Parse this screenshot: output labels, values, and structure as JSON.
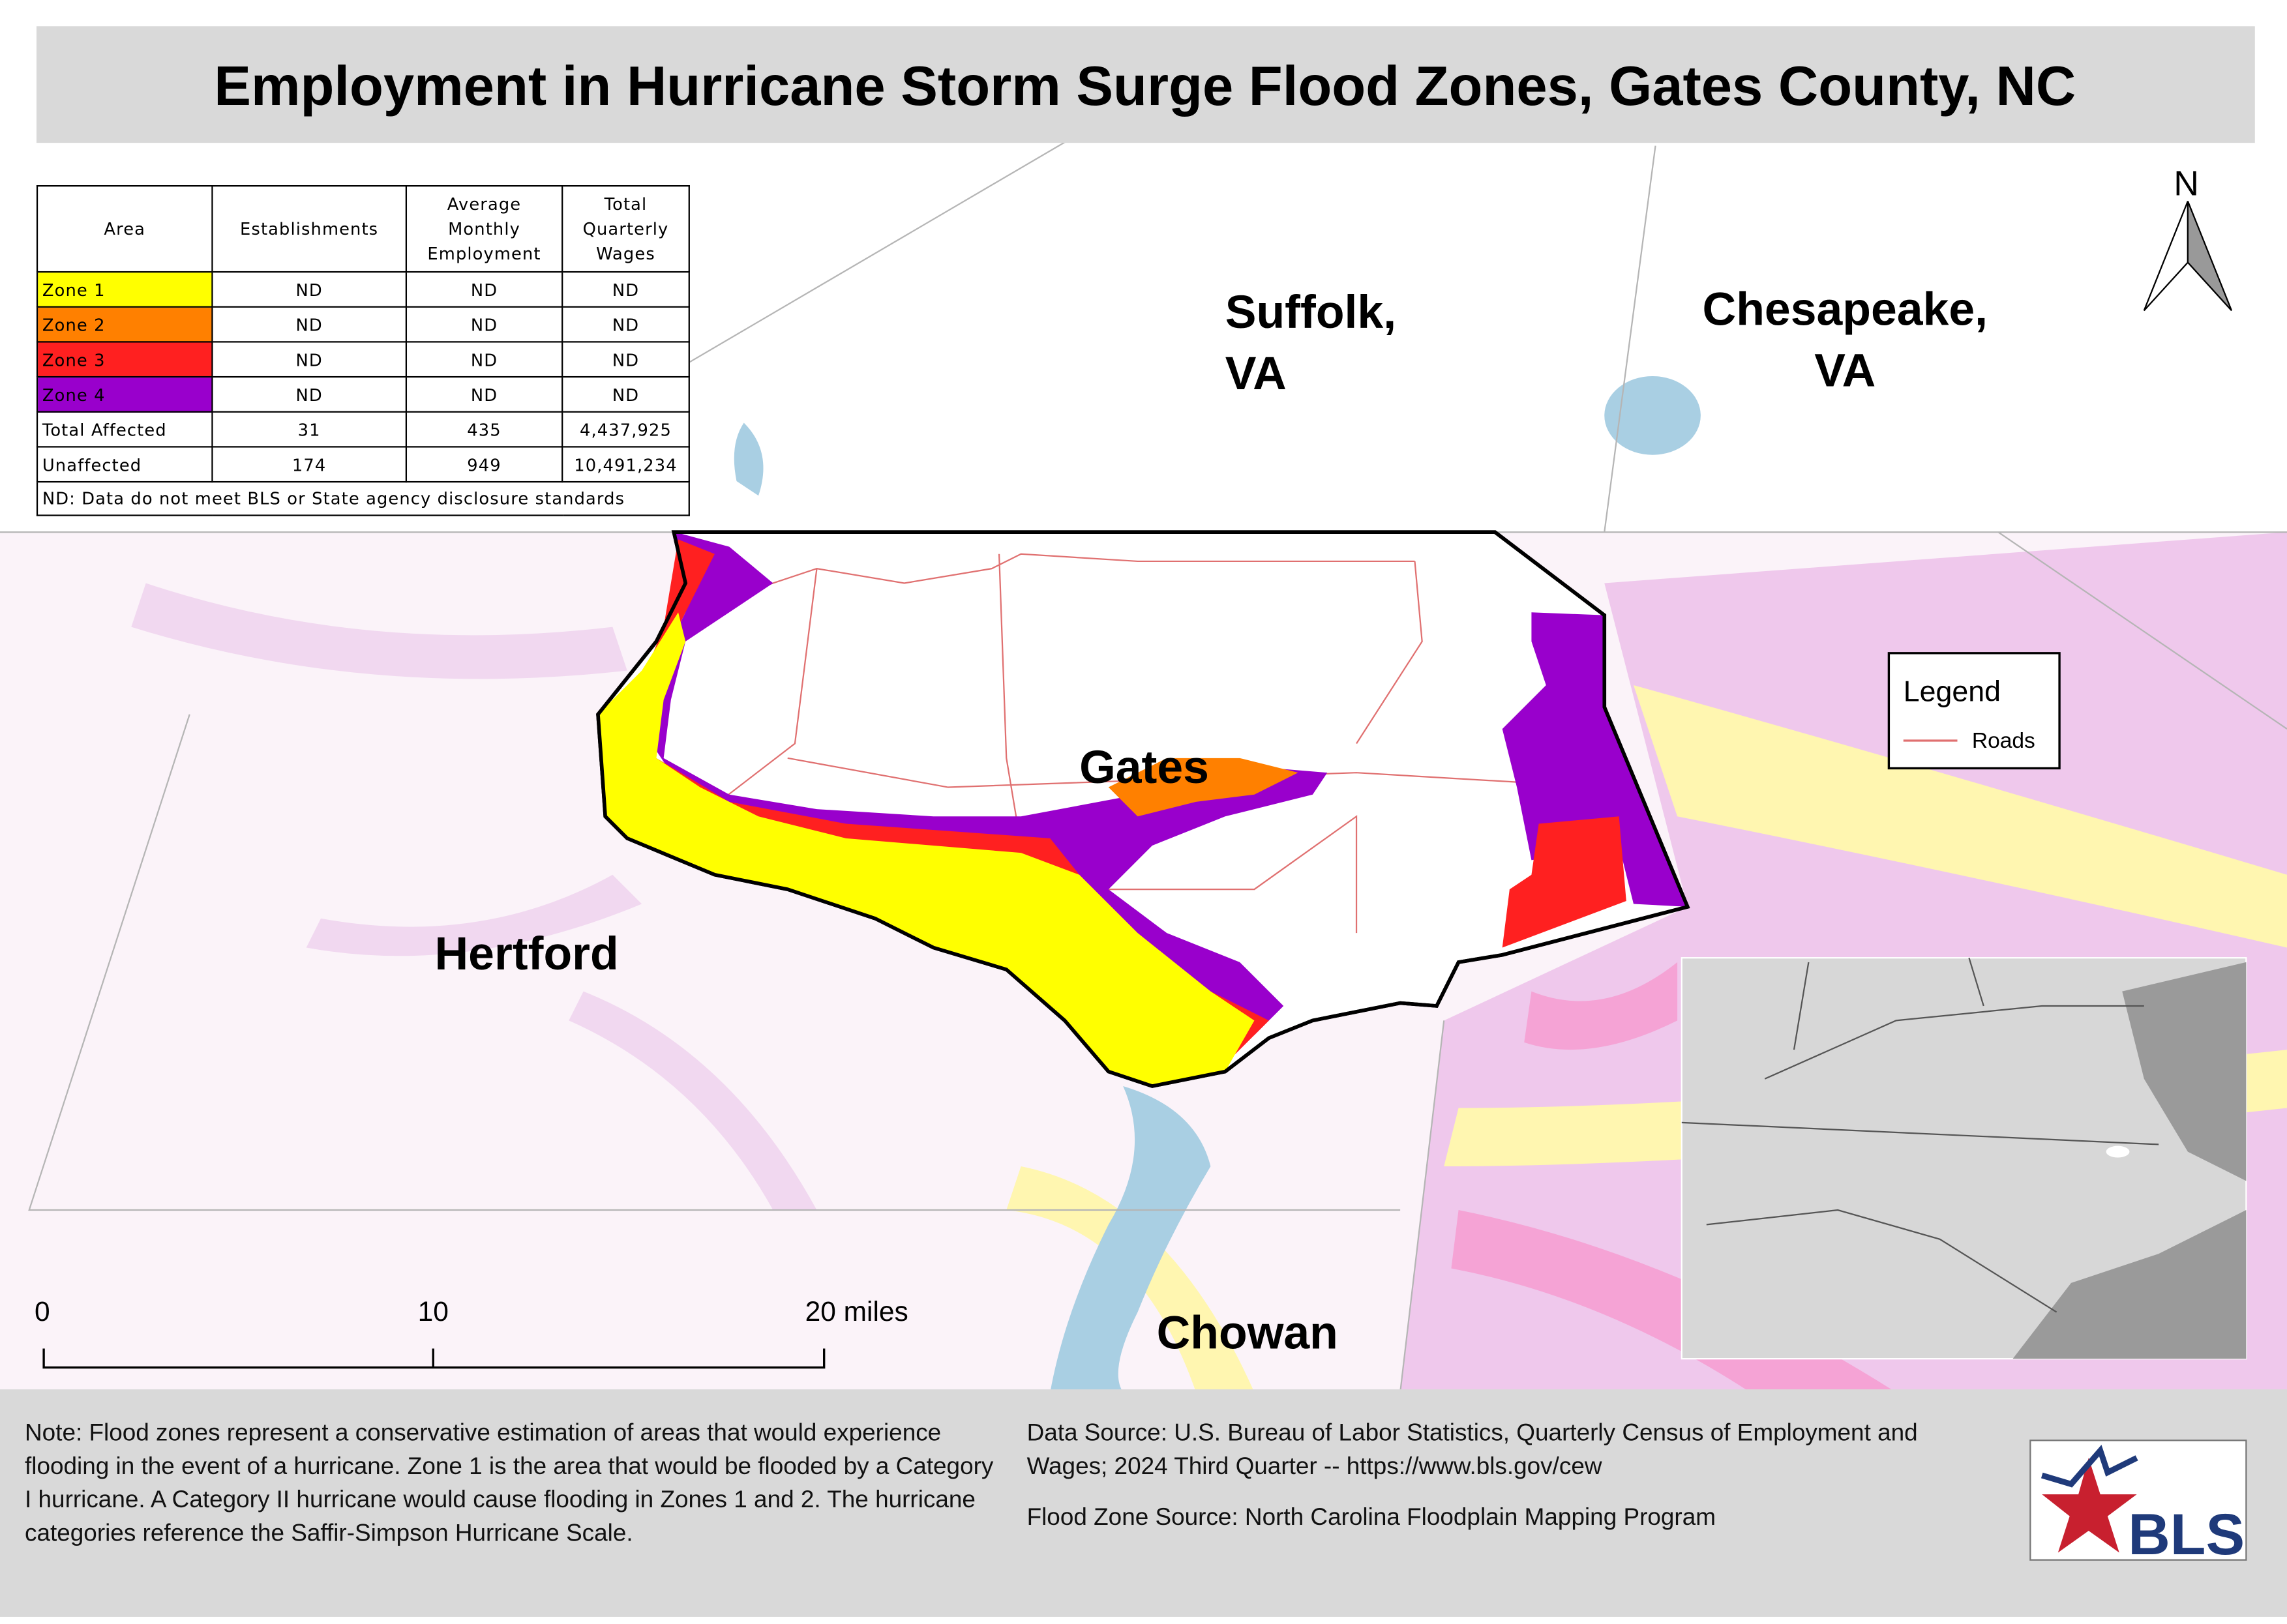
{
  "title": "Employment in Hurricane Storm Surge Flood Zones, Gates County, NC",
  "table": {
    "header": [
      "Area",
      "Establishments",
      "Average Monthly Employment",
      "Total Quarterly Wages"
    ],
    "rows": [
      [
        "Zone 1",
        "ND",
        "ND",
        "ND"
      ],
      [
        "Zone 2",
        "ND",
        "ND",
        "ND"
      ],
      [
        "Zone 3",
        "ND",
        "ND",
        "ND"
      ],
      [
        "Zone 4",
        "ND",
        "ND",
        "ND"
      ],
      [
        "Total Affected",
        "31",
        "435",
        "4,437,925"
      ],
      [
        "Unaffected",
        "174",
        "949",
        "10,491,234"
      ]
    ],
    "zone_colors": [
      "#ffff00",
      "#ff8000",
      "#ff2020",
      "#9900cc"
    ],
    "footnote": "ND: Data do not meet BLS or State agency disclosure standards"
  },
  "place_labels": [
    {
      "lines": [
        "Suffolk,",
        "VA"
      ]
    },
    {
      "lines": [
        "Chesapeake,",
        "VA"
      ]
    },
    {
      "lines": [
        "Gates"
      ]
    },
    {
      "lines": [
        "Hertford"
      ]
    },
    {
      "lines": [
        "Chowan"
      ]
    }
  ],
  "north_arrow": "N",
  "legend": {
    "title": "Legend",
    "items": [
      "Roads"
    ]
  },
  "scale_bar": [
    "0",
    "10",
    "20 miles"
  ],
  "notes": {
    "left": "Note: Flood zones represent a conservative estimation of areas that would experience flooding in the event of a hurricane. Zone 1 is the area that would be flooded by a Category I hurricane. A Category II hurricane would cause flooding in Zones 1 and 2. The hurricane categories reference the Saffir-Simpson Hurricane Scale.",
    "right": [
      "Data Source: U.S. Bureau of Labor Statistics, Quarterly Census of Employment and Wages; 2024 Third Quarter -- https://www.bls.gov/cew",
      "Flood Zone Source: North Carolina Floodplain Mapping Program"
    ]
  },
  "logo": "BLS"
}
